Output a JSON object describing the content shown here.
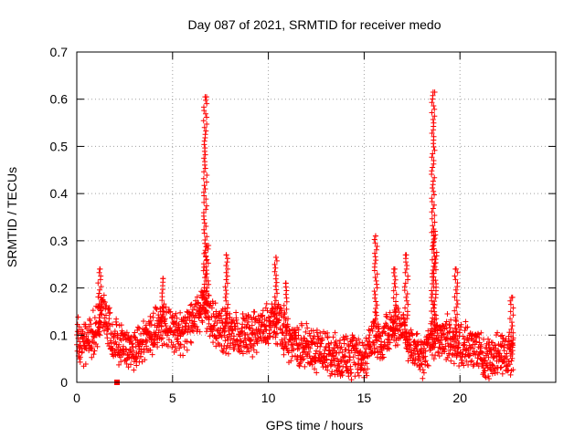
{
  "chart_data": {
    "type": "scatter",
    "title": "Day 087 of 2021, SRMTID for receiver medo",
    "xlabel": "GPS time / hours",
    "ylabel": "SRMTID / TECUs",
    "xlim": [
      0,
      25
    ],
    "ylim": [
      0,
      0.7
    ],
    "xticks": [
      0,
      5,
      10,
      15,
      20
    ],
    "yticks": [
      0,
      0.1,
      0.2,
      0.3,
      0.4,
      0.5,
      0.6,
      0.7
    ],
    "xtick_labels": [
      "0",
      "5",
      "10",
      "15",
      "20"
    ],
    "ytick_labels": [
      "0",
      "0.1",
      "0.2",
      "0.3",
      "0.4",
      "0.5",
      "0.6",
      "0.7"
    ],
    "grid": true,
    "marker": "+",
    "series_color": "#ff0000",
    "outlier": {
      "x": 2.1,
      "y": 0.0
    },
    "envelope": [
      {
        "x": 0.0,
        "y": 0.095
      },
      {
        "x": 0.5,
        "y": 0.08
      },
      {
        "x": 1.0,
        "y": 0.11
      },
      {
        "x": 1.3,
        "y": 0.16
      },
      {
        "x": 1.8,
        "y": 0.1
      },
      {
        "x": 2.5,
        "y": 0.075
      },
      {
        "x": 3.0,
        "y": 0.07
      },
      {
        "x": 3.5,
        "y": 0.09
      },
      {
        "x": 4.0,
        "y": 0.11
      },
      {
        "x": 4.5,
        "y": 0.13
      },
      {
        "x": 5.0,
        "y": 0.11
      },
      {
        "x": 5.5,
        "y": 0.1
      },
      {
        "x": 6.0,
        "y": 0.13
      },
      {
        "x": 6.5,
        "y": 0.16
      },
      {
        "x": 7.0,
        "y": 0.14
      },
      {
        "x": 7.5,
        "y": 0.11
      },
      {
        "x": 8.0,
        "y": 0.1
      },
      {
        "x": 8.5,
        "y": 0.1
      },
      {
        "x": 9.0,
        "y": 0.1
      },
      {
        "x": 9.5,
        "y": 0.11
      },
      {
        "x": 10.0,
        "y": 0.12
      },
      {
        "x": 10.5,
        "y": 0.13
      },
      {
        "x": 11.0,
        "y": 0.09
      },
      {
        "x": 11.5,
        "y": 0.08
      },
      {
        "x": 12.0,
        "y": 0.08
      },
      {
        "x": 12.5,
        "y": 0.07
      },
      {
        "x": 13.0,
        "y": 0.065
      },
      {
        "x": 13.5,
        "y": 0.06
      },
      {
        "x": 14.0,
        "y": 0.055
      },
      {
        "x": 14.5,
        "y": 0.05
      },
      {
        "x": 15.0,
        "y": 0.045
      },
      {
        "x": 15.5,
        "y": 0.1
      },
      {
        "x": 16.0,
        "y": 0.09
      },
      {
        "x": 16.5,
        "y": 0.12
      },
      {
        "x": 17.0,
        "y": 0.12
      },
      {
        "x": 17.5,
        "y": 0.07
      },
      {
        "x": 18.0,
        "y": 0.05
      },
      {
        "x": 18.5,
        "y": 0.09
      },
      {
        "x": 19.0,
        "y": 0.1
      },
      {
        "x": 19.5,
        "y": 0.09
      },
      {
        "x": 20.0,
        "y": 0.08
      },
      {
        "x": 20.5,
        "y": 0.075
      },
      {
        "x": 21.0,
        "y": 0.07
      },
      {
        "x": 21.5,
        "y": 0.045
      },
      {
        "x": 22.0,
        "y": 0.06
      },
      {
        "x": 22.5,
        "y": 0.065
      },
      {
        "x": 22.8,
        "y": 0.06
      }
    ],
    "spikes": [
      {
        "x": 1.2,
        "ymin": 0.1,
        "ymax": 0.24
      },
      {
        "x": 4.5,
        "ymin": 0.12,
        "ymax": 0.22
      },
      {
        "x": 6.7,
        "ymin": 0.15,
        "ymax": 0.605
      },
      {
        "x": 6.8,
        "ymin": 0.17,
        "ymax": 0.29
      },
      {
        "x": 7.8,
        "ymin": 0.12,
        "ymax": 0.27
      },
      {
        "x": 10.4,
        "ymin": 0.12,
        "ymax": 0.265
      },
      {
        "x": 10.9,
        "ymin": 0.1,
        "ymax": 0.21
      },
      {
        "x": 15.6,
        "ymin": 0.12,
        "ymax": 0.31
      },
      {
        "x": 16.6,
        "ymin": 0.11,
        "ymax": 0.24
      },
      {
        "x": 17.2,
        "ymin": 0.09,
        "ymax": 0.27
      },
      {
        "x": 18.6,
        "ymin": 0.1,
        "ymax": 0.615
      },
      {
        "x": 18.7,
        "ymin": 0.12,
        "ymax": 0.32
      },
      {
        "x": 19.8,
        "ymin": 0.1,
        "ymax": 0.24
      },
      {
        "x": 22.7,
        "ymin": 0.06,
        "ymax": 0.18
      }
    ]
  }
}
